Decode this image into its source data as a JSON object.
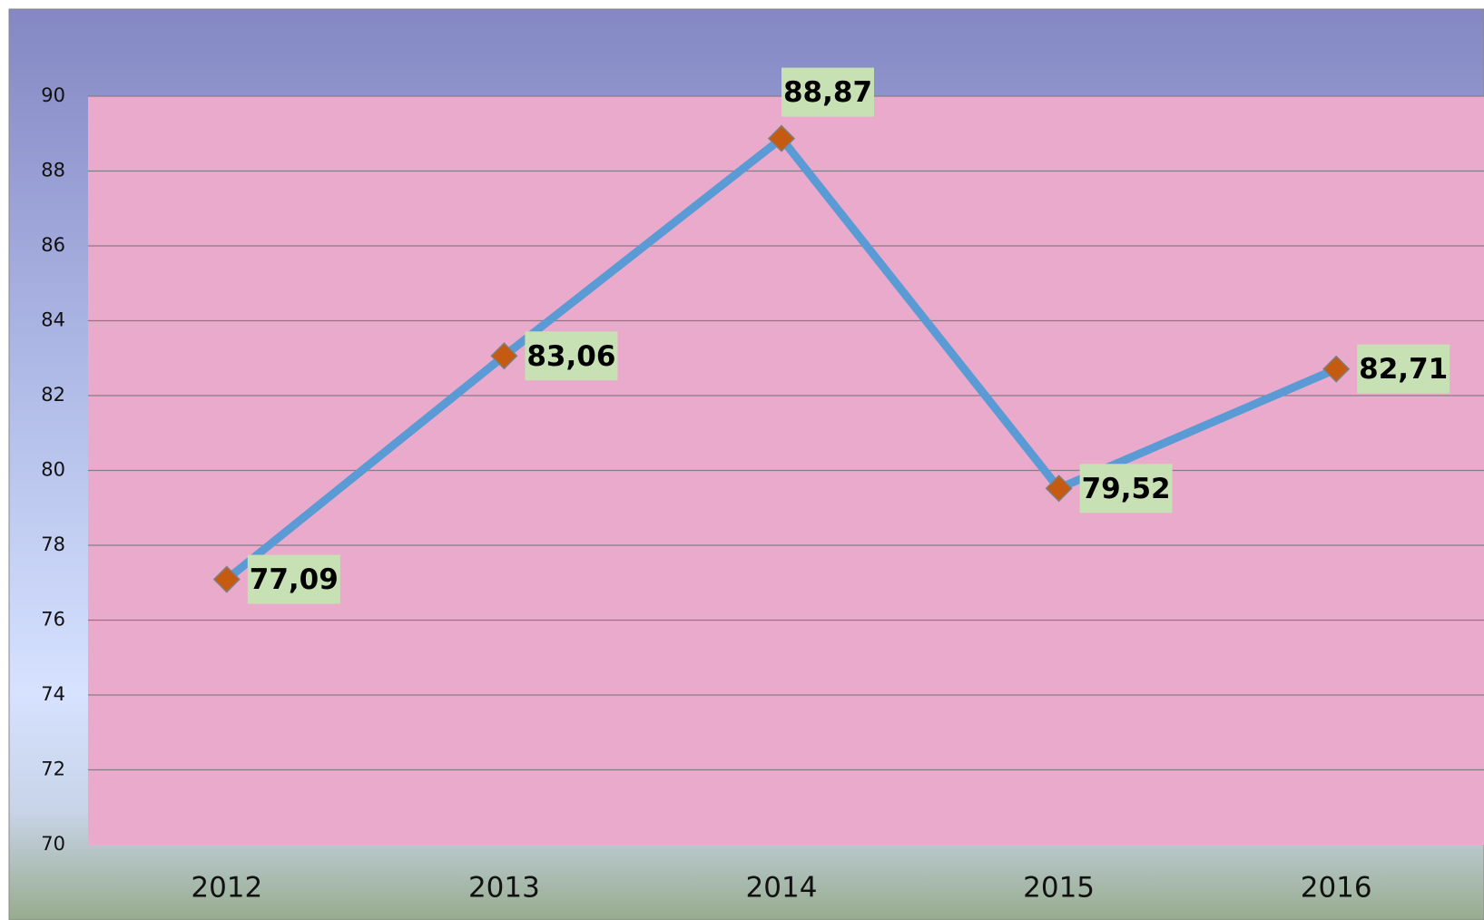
{
  "chart_data": {
    "type": "line",
    "categories": [
      "2012",
      "2013",
      "2014",
      "2015",
      "2016"
    ],
    "series": [
      {
        "color": "#5b9bd5",
        "marker_color": "#c55a11",
        "values": [
          77.09,
          83.06,
          88.87,
          79.52,
          82.71
        ],
        "value_labels": [
          "77,09",
          "83,06",
          "88,87",
          "79,52",
          "82,71"
        ]
      }
    ],
    "ylim": [
      70,
      90
    ],
    "yticks": [
      70,
      72,
      74,
      76,
      78,
      80,
      82,
      84,
      86,
      88,
      90
    ],
    "grid": true
  }
}
